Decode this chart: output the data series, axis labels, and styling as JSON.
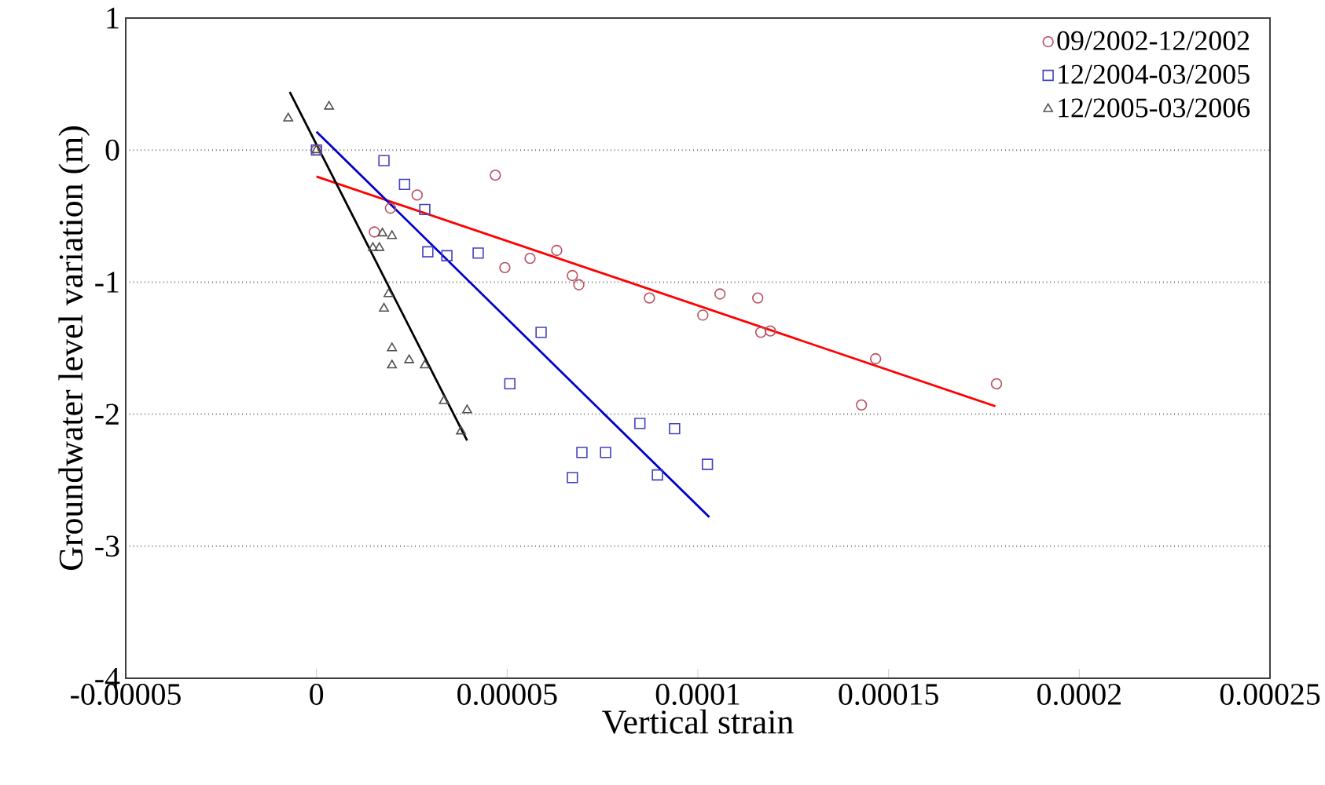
{
  "chart_data": {
    "type": "scatter",
    "xlabel": "Vertical strain",
    "ylabel": "Groundwater level variation (m)",
    "xlim": [
      -5e-05,
      0.00025
    ],
    "ylim": [
      -4,
      1
    ],
    "xticks": [
      {
        "value": -5e-05,
        "label": "-0.00005"
      },
      {
        "value": 0,
        "label": "0"
      },
      {
        "value": 5e-05,
        "label": "0.00005"
      },
      {
        "value": 0.0001,
        "label": "0.0001"
      },
      {
        "value": 0.00015,
        "label": "0.00015"
      },
      {
        "value": 0.0002,
        "label": "0.0002"
      },
      {
        "value": 0.00025,
        "label": "0.00025"
      }
    ],
    "yticks": [
      -4,
      -3,
      -2,
      -1,
      0,
      1
    ],
    "grid": "y",
    "legend": "top right",
    "series": [
      {
        "name": "09/2002-12/2002",
        "color": "#b85060",
        "marker": "circle",
        "x": [
          0,
          1.52e-05,
          1.94e-05,
          2.64e-05,
          4.69e-05,
          4.94e-05,
          5.6e-05,
          6.3e-05,
          6.71e-05,
          6.88e-05,
          8.73e-05,
          0.0001013,
          0.0001058,
          0.0001157,
          0.0001165,
          0.000119,
          0.0001429,
          0.0001466,
          0.0001783
        ],
        "values": [
          0,
          -0.62,
          -0.44,
          -0.34,
          -0.19,
          -0.89,
          -0.82,
          -0.76,
          -0.95,
          -1.02,
          -1.12,
          -1.25,
          -1.09,
          -1.12,
          -1.38,
          -1.37,
          -1.93,
          -1.58,
          -1.77
        ]
      },
      {
        "name": "12/2004-03/2005",
        "color": "#4040c0",
        "marker": "square",
        "x": [
          0,
          1.77e-05,
          2.31e-05,
          2.84e-05,
          2.92e-05,
          3.42e-05,
          4.24e-05,
          5.89e-05,
          5.07e-05,
          8.48e-05,
          9.39e-05,
          6.96e-05,
          7.58e-05,
          6.71e-05,
          8.94e-05,
          0.0001025
        ],
        "values": [
          0,
          -0.08,
          -0.26,
          -0.45,
          -0.77,
          -0.8,
          -0.78,
          -1.38,
          -1.77,
          -2.07,
          -2.11,
          -2.29,
          -2.29,
          -2.48,
          -2.46,
          -2.38
        ]
      },
      {
        "name": "12/2005-03/2006",
        "color": "#505050",
        "marker": "triangle",
        "x": [
          -7.4e-06,
          3.3e-06,
          0,
          1.73e-05,
          1.98e-05,
          1.48e-05,
          1.65e-05,
          1.89e-05,
          1.77e-05,
          1.98e-05,
          1.98e-05,
          2.43e-05,
          2.84e-05,
          3.34e-05,
          3.95e-05,
          3.79e-05
        ],
        "values": [
          0.24,
          0.33,
          0,
          -0.63,
          -0.65,
          -0.74,
          -0.74,
          -1.09,
          -1.2,
          -1.5,
          -1.63,
          -1.59,
          -1.63,
          -1.9,
          -1.97,
          -2.13
        ]
      },
      {
        "type": "line",
        "color": "#ff0000",
        "x": [
          0,
          0.000178
        ],
        "values": [
          -0.2,
          -1.94
        ]
      },
      {
        "type": "line",
        "color": "#0000cc",
        "x": [
          0,
          0.000103
        ],
        "values": [
          0.14,
          -2.78
        ]
      },
      {
        "type": "line",
        "color": "#000000",
        "x": [
          -7e-06,
          3.95e-05
        ],
        "values": [
          0.44,
          -2.2
        ]
      }
    ]
  }
}
